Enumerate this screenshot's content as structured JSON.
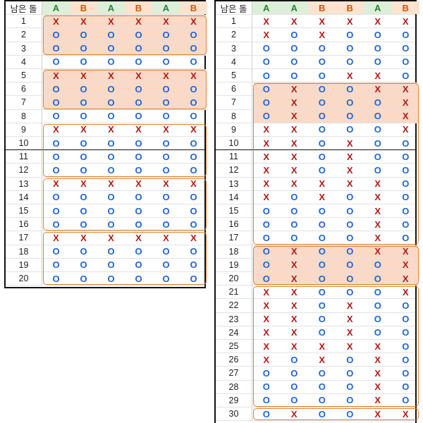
{
  "header_label": "남은 돌",
  "colors": {
    "A": "#2e7d32",
    "B": "#c55a11",
    "X": "#b21818",
    "O": "#1f63d4",
    "highlight": "#fbd9c7",
    "group_border": "#e2812f"
  },
  "left_table": {
    "columns": [
      "A",
      "B",
      "A",
      "B",
      "A",
      "B"
    ],
    "rows": [
      {
        "n": "1",
        "marks": [
          "X",
          "X",
          "X",
          "X",
          "X",
          "X"
        ]
      },
      {
        "n": "2",
        "marks": [
          "O",
          "O",
          "O",
          "O",
          "O",
          "O"
        ]
      },
      {
        "n": "3",
        "marks": [
          "O",
          "O",
          "O",
          "O",
          "O",
          "O"
        ]
      },
      {
        "n": "4",
        "marks": [
          "O",
          "O",
          "O",
          "O",
          "O",
          "O"
        ]
      },
      {
        "n": "5",
        "marks": [
          "X",
          "X",
          "X",
          "X",
          "X",
          "X"
        ]
      },
      {
        "n": "6",
        "marks": [
          "O",
          "O",
          "O",
          "O",
          "O",
          "O"
        ]
      },
      {
        "n": "7",
        "marks": [
          "O",
          "O",
          "O",
          "O",
          "O",
          "O"
        ]
      },
      {
        "n": "8",
        "marks": [
          "O",
          "O",
          "O",
          "O",
          "O",
          "O"
        ]
      },
      {
        "n": "9",
        "marks": [
          "X",
          "X",
          "X",
          "X",
          "X",
          "X"
        ]
      },
      {
        "n": "10",
        "marks": [
          "O",
          "O",
          "O",
          "O",
          "O",
          "O"
        ]
      },
      {
        "n": "11",
        "marks": [
          "O",
          "O",
          "O",
          "O",
          "O",
          "O"
        ]
      },
      {
        "n": "12",
        "marks": [
          "O",
          "O",
          "O",
          "O",
          "O",
          "O"
        ]
      },
      {
        "n": "13",
        "marks": [
          "X",
          "X",
          "X",
          "X",
          "X",
          "X"
        ]
      },
      {
        "n": "14",
        "marks": [
          "O",
          "O",
          "O",
          "O",
          "O",
          "O"
        ]
      },
      {
        "n": "15",
        "marks": [
          "O",
          "O",
          "O",
          "O",
          "O",
          "O"
        ]
      },
      {
        "n": "16",
        "marks": [
          "O",
          "O",
          "O",
          "O",
          "O",
          "O"
        ]
      },
      {
        "n": "17",
        "marks": [
          "X",
          "X",
          "X",
          "X",
          "X",
          "X"
        ]
      },
      {
        "n": "18",
        "marks": [
          "O",
          "O",
          "O",
          "O",
          "O",
          "O"
        ]
      },
      {
        "n": "19",
        "marks": [
          "O",
          "O",
          "O",
          "O",
          "O",
          "O"
        ]
      },
      {
        "n": "20",
        "marks": [
          "O",
          "O",
          "O",
          "O",
          "O",
          "O"
        ]
      }
    ],
    "highlighted_rows": [
      1,
      2,
      3,
      5,
      6,
      7
    ],
    "groups": [
      [
        1,
        3
      ],
      [
        5,
        7
      ],
      [
        9,
        12
      ],
      [
        13,
        16
      ],
      [
        17,
        20
      ]
    ],
    "separators_after": [
      10
    ]
  },
  "right_table": {
    "columns": [
      "A",
      "A",
      "B",
      "B",
      "A",
      "B"
    ],
    "rows": [
      {
        "n": "1",
        "marks": [
          "X",
          "X",
          "X",
          "X",
          "X",
          "X"
        ]
      },
      {
        "n": "2",
        "marks": [
          "X",
          "O",
          "X",
          "O",
          "O",
          "O"
        ]
      },
      {
        "n": "3",
        "marks": [
          "O",
          "O",
          "O",
          "O",
          "O",
          "O"
        ]
      },
      {
        "n": "4",
        "marks": [
          "O",
          "O",
          "O",
          "O",
          "O",
          "O"
        ]
      },
      {
        "n": "5",
        "marks": [
          "O",
          "O",
          "O",
          "X",
          "X",
          "O"
        ]
      },
      {
        "n": "6",
        "marks": [
          "O",
          "X",
          "O",
          "O",
          "X",
          "X"
        ]
      },
      {
        "n": "7",
        "marks": [
          "O",
          "X",
          "O",
          "O",
          "O",
          "X"
        ]
      },
      {
        "n": "8",
        "marks": [
          "O",
          "X",
          "O",
          "O",
          "O",
          "X"
        ]
      },
      {
        "n": "9",
        "marks": [
          "X",
          "X",
          "O",
          "O",
          "O",
          "X"
        ]
      },
      {
        "n": "10",
        "marks": [
          "X",
          "X",
          "O",
          "X",
          "O",
          "O"
        ]
      },
      {
        "n": "11",
        "marks": [
          "X",
          "X",
          "O",
          "X",
          "O",
          "O"
        ]
      },
      {
        "n": "12",
        "marks": [
          "X",
          "X",
          "O",
          "X",
          "O",
          "O"
        ]
      },
      {
        "n": "13",
        "marks": [
          "X",
          "X",
          "X",
          "X",
          "X",
          "O"
        ]
      },
      {
        "n": "14",
        "marks": [
          "X",
          "O",
          "X",
          "O",
          "X",
          "O"
        ]
      },
      {
        "n": "15",
        "marks": [
          "O",
          "O",
          "O",
          "O",
          "X",
          "O"
        ]
      },
      {
        "n": "16",
        "marks": [
          "O",
          "O",
          "O",
          "O",
          "X",
          "O"
        ]
      },
      {
        "n": "17",
        "marks": [
          "O",
          "O",
          "O",
          "O",
          "X",
          "O"
        ]
      },
      {
        "n": "18",
        "marks": [
          "O",
          "X",
          "O",
          "O",
          "X",
          "X"
        ]
      },
      {
        "n": "19",
        "marks": [
          "O",
          "X",
          "O",
          "O",
          "O",
          "X"
        ]
      },
      {
        "n": "20",
        "marks": [
          "O",
          "X",
          "O",
          "O",
          "O",
          "X"
        ]
      },
      {
        "n": "21",
        "marks": [
          "X",
          "X",
          "O",
          "O",
          "O",
          "X"
        ]
      },
      {
        "n": "22",
        "marks": [
          "X",
          "X",
          "O",
          "X",
          "O",
          "O"
        ]
      },
      {
        "n": "23",
        "marks": [
          "X",
          "X",
          "O",
          "X",
          "O",
          "O"
        ]
      },
      {
        "n": "24",
        "marks": [
          "X",
          "X",
          "O",
          "X",
          "O",
          "O"
        ]
      },
      {
        "n": "25",
        "marks": [
          "X",
          "X",
          "X",
          "X",
          "X",
          "O"
        ]
      },
      {
        "n": "26",
        "marks": [
          "X",
          "O",
          "X",
          "O",
          "X",
          "O"
        ]
      },
      {
        "n": "27",
        "marks": [
          "O",
          "O",
          "O",
          "O",
          "X",
          "O"
        ]
      },
      {
        "n": "28",
        "marks": [
          "O",
          "O",
          "O",
          "O",
          "X",
          "O"
        ]
      },
      {
        "n": "29",
        "marks": [
          "O",
          "O",
          "O",
          "O",
          "X",
          "O"
        ]
      },
      {
        "n": "30",
        "marks": [
          "O",
          "X",
          "O",
          "O",
          "X",
          "X"
        ]
      }
    ],
    "highlighted_rows": [
      6,
      7,
      8,
      18,
      19,
      20
    ],
    "groups": [
      [
        6,
        17
      ],
      [
        18,
        20
      ],
      [
        21,
        29
      ],
      [
        30,
        30
      ]
    ],
    "separators_after": [
      10
    ]
  }
}
